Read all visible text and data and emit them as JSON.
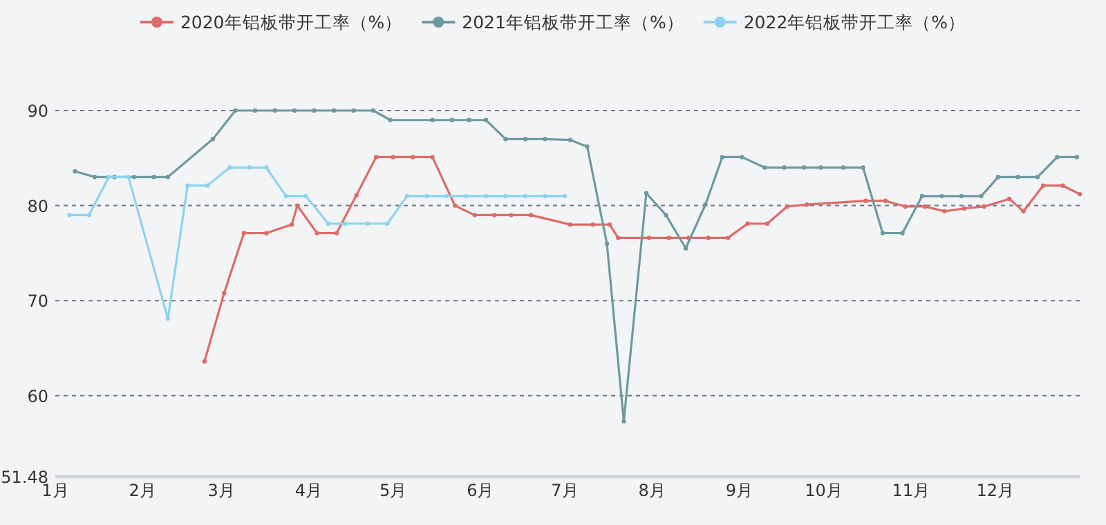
{
  "chart_data": {
    "type": "line",
    "legend": "top",
    "grid": "y",
    "marker": "circle",
    "line_style": "solid",
    "xlim": [
      "--01-01",
      "--12-31"
    ],
    "xticks": [
      {
        "value": "--01-01",
        "label": "1月"
      },
      {
        "value": "--02-01",
        "label": "2月"
      },
      {
        "value": "--03-01",
        "label": "3月"
      },
      {
        "value": "--04-01",
        "label": "4月"
      },
      {
        "value": "--05-01",
        "label": "5月"
      },
      {
        "value": "--06-01",
        "label": "6月"
      },
      {
        "value": "--07-01",
        "label": "7月"
      },
      {
        "value": "--08-01",
        "label": "8月"
      },
      {
        "value": "--09-01",
        "label": "9月"
      },
      {
        "value": "--10-01",
        "label": "10月"
      },
      {
        "value": "--11-01",
        "label": "11月"
      },
      {
        "value": "--12-01",
        "label": "12月"
      }
    ],
    "ylim": [
      51.48,
      90
    ],
    "yticks": [
      51.48,
      60,
      70,
      80,
      90
    ],
    "series": [
      {
        "name": "2020年铝板带开工率（%）",
        "color": "#dd6b66",
        "x": [
          "--02-23",
          "--03-02",
          "--03-09",
          "--03-17",
          "--03-26",
          "--03-28",
          "--04-04",
          "--04-11",
          "--04-18",
          "--04-25",
          "--05-01",
          "--05-08",
          "--05-15",
          "--05-23",
          "--05-30",
          "--06-06",
          "--06-12",
          "--06-19",
          "--07-03",
          "--07-11",
          "--07-17",
          "--07-20",
          "--07-31",
          "--08-07",
          "--08-14",
          "--08-21",
          "--08-28",
          "--09-04",
          "--09-11",
          "--09-18",
          "--09-25",
          "--10-16",
          "--10-23",
          "--10-30",
          "--11-06",
          "--11-13",
          "--11-20",
          "--11-27",
          "--12-06",
          "--12-11",
          "--12-18",
          "--12-25",
          "--12-31"
        ],
        "values": [
          63.6,
          70.8,
          77.1,
          77.1,
          78,
          80,
          77.1,
          77.1,
          81.1,
          85.1,
          85.1,
          85.1,
          85.1,
          80,
          79,
          79,
          79,
          79,
          78,
          78,
          78,
          76.6,
          76.6,
          76.6,
          76.6,
          76.6,
          76.6,
          78.1,
          78.1,
          79.9,
          80.1,
          80.5,
          80.5,
          79.9,
          79.9,
          79.4,
          79.7,
          79.9,
          80.7,
          79.4,
          82.1,
          82.1,
          81.2
        ]
      },
      {
        "name": "2021年铝板带开工率（%）",
        "color": "#6d9a9f",
        "x": [
          "--01-08",
          "--01-15",
          "--01-22",
          "--01-29",
          "--02-05",
          "--02-10",
          "--02-26",
          "--03-06",
          "--03-13",
          "--03-20",
          "--03-27",
          "--04-03",
          "--04-10",
          "--04-17",
          "--04-24",
          "--04-30",
          "--05-15",
          "--05-22",
          "--05-28",
          "--06-03",
          "--06-10",
          "--06-17",
          "--06-24",
          "--07-03",
          "--07-09",
          "--07-16",
          "--07-22",
          "--07-30",
          "--08-06",
          "--08-13",
          "--08-20",
          "--08-26",
          "--09-02",
          "--09-10",
          "--09-17",
          "--09-24",
          "--09-30",
          "--10-08",
          "--10-15",
          "--10-22",
          "--10-29",
          "--11-05",
          "--11-12",
          "--11-19",
          "--11-26",
          "--12-02",
          "--12-09",
          "--12-16",
          "--12-23",
          "--12-30"
        ],
        "values": [
          83.6,
          83,
          83,
          83,
          83,
          83,
          87,
          90,
          90,
          90,
          90,
          90,
          90,
          90,
          90,
          89,
          89,
          89,
          89,
          89,
          87,
          87,
          87,
          86.9,
          86.2,
          76,
          57.3,
          81.3,
          79,
          75.5,
          80.1,
          85.1,
          85.1,
          84,
          84,
          84,
          84,
          84,
          84,
          77.1,
          77.1,
          81,
          81,
          81,
          81,
          83,
          83,
          83,
          85.1,
          85.1
        ]
      },
      {
        "name": "2022年铝板带开工率（%）",
        "color": "#8dd3f0",
        "x": [
          "--01-06",
          "--01-13",
          "--01-20",
          "--01-27",
          "--02-10",
          "--02-17",
          "--02-24",
          "--03-04",
          "--03-11",
          "--03-17",
          "--03-24",
          "--03-31",
          "--04-08",
          "--04-14",
          "--04-22",
          "--04-29",
          "--05-06",
          "--05-13",
          "--05-20",
          "--05-27",
          "--06-03",
          "--06-10",
          "--06-17",
          "--06-24",
          "--07-01"
        ],
        "values": [
          79,
          79,
          83,
          83,
          68.1,
          82.1,
          82.1,
          84,
          84,
          84,
          81,
          81,
          78.1,
          78.1,
          78.1,
          78.1,
          81,
          81,
          81,
          81,
          81,
          81,
          81,
          81,
          81
        ]
      }
    ]
  }
}
